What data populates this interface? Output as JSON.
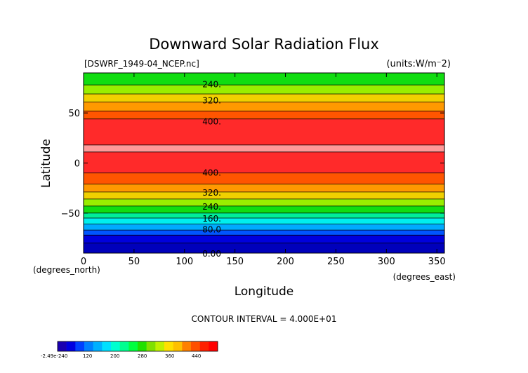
{
  "chart_data": {
    "type": "heatmap",
    "title": "Downward Solar Radiation Flux",
    "file_label": "[DSWRF_1949-04_NCEP.nc]",
    "units_label": "(units:W/m⁻2)",
    "xlabel": "Longitude",
    "ylabel": "Latitude",
    "x_unit_label": "(degrees_east)",
    "y_unit_label": "(degrees_north)",
    "xlim": [
      0,
      357.5
    ],
    "ylim": [
      -90,
      90
    ],
    "x_ticks": [
      0,
      50,
      100,
      150,
      200,
      250,
      300,
      350
    ],
    "y_ticks": [
      -50,
      0,
      50
    ],
    "contour_interval_text": "CONTOUR INTERVAL = 4.000E+01",
    "contour_labels": [
      {
        "text": "240.",
        "lat": 79
      },
      {
        "text": "320.",
        "lat": 63
      },
      {
        "text": "400.",
        "lat": 42
      },
      {
        "text": "400.",
        "lat": -9
      },
      {
        "text": "320.",
        "lat": -29
      },
      {
        "text": "240.",
        "lat": -43
      },
      {
        "text": "160.",
        "lat": -55
      },
      {
        "text": "80.0",
        "lat": -66
      },
      {
        "text": "0.00",
        "lat": -90
      }
    ],
    "bands": [
      {
        "lat_min": 78,
        "lat_max": 90,
        "color": "#11dd11"
      },
      {
        "lat_min": 69,
        "lat_max": 78,
        "color": "#99ee00"
      },
      {
        "lat_min": 61,
        "lat_max": 69,
        "color": "#f0d000"
      },
      {
        "lat_min": 52,
        "lat_max": 61,
        "color": "#ff9900"
      },
      {
        "lat_min": 44,
        "lat_max": 52,
        "color": "#ff5500"
      },
      {
        "lat_min": 18,
        "lat_max": 44,
        "color": "#ff2a2a"
      },
      {
        "lat_min": 11,
        "lat_max": 18,
        "color": "#ff9999"
      },
      {
        "lat_min": -10,
        "lat_max": 11,
        "color": "#ff2a2a"
      },
      {
        "lat_min": -21,
        "lat_max": -10,
        "color": "#ff5500"
      },
      {
        "lat_min": -29,
        "lat_max": -21,
        "color": "#ff9900"
      },
      {
        "lat_min": -36,
        "lat_max": -29,
        "color": "#f0d000"
      },
      {
        "lat_min": -43,
        "lat_max": -36,
        "color": "#99ee00"
      },
      {
        "lat_min": -50,
        "lat_max": -43,
        "color": "#11dd11"
      },
      {
        "lat_min": -55,
        "lat_max": -50,
        "color": "#00ee99"
      },
      {
        "lat_min": -61,
        "lat_max": -55,
        "color": "#00eeee"
      },
      {
        "lat_min": -67,
        "lat_max": -61,
        "color": "#00aaff"
      },
      {
        "lat_min": -72,
        "lat_max": -67,
        "color": "#0055ff"
      },
      {
        "lat_min": -80,
        "lat_max": -72,
        "color": "#0000dd"
      },
      {
        "lat_min": -90,
        "lat_max": -80,
        "color": "#0000bb"
      }
    ],
    "colorbar": {
      "labels": [
        "-2.49e-240",
        "120",
        "200",
        "280",
        "360",
        "440"
      ],
      "colors": [
        "#1a00b0",
        "#0000e0",
        "#0040ff",
        "#0080ff",
        "#00b0ff",
        "#00e0ff",
        "#00ffd0",
        "#00ff90",
        "#00ff40",
        "#20e000",
        "#80e000",
        "#c0f000",
        "#ffe000",
        "#ffc000",
        "#ff8000",
        "#ff5000",
        "#ff2000",
        "#ff0000"
      ]
    }
  }
}
